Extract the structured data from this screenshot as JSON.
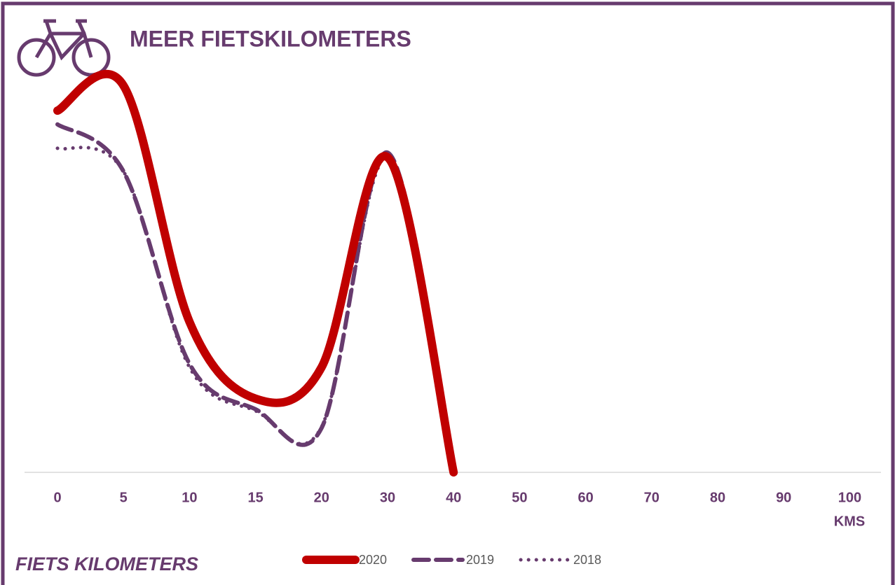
{
  "chart_data": {
    "type": "line",
    "title": "MEER FIETSKILOMETERS",
    "subtitle": "FIETS KILOMETERS",
    "xlabel": "KMS",
    "categories": [
      "0",
      "5",
      "10",
      "15",
      "20",
      "30",
      "40",
      "50",
      "60",
      "70",
      "80",
      "90",
      "100"
    ],
    "series": [
      {
        "name": "2020",
        "color": "#c00000",
        "style": "solid",
        "values": [
          92.3,
          98.7,
          38.4,
          18.8,
          26.8,
          80.4,
          0,
          null,
          null,
          null,
          null,
          null,
          null
        ]
      },
      {
        "name": "2019",
        "color": "#673b6e",
        "style": "dashed",
        "values": [
          88.8,
          76.8,
          27.7,
          16.1,
          11.3,
          81.6,
          0,
          null,
          null,
          null,
          null,
          null,
          null
        ]
      },
      {
        "name": "2018",
        "color": "#673b6e",
        "style": "dotted",
        "values": [
          82.7,
          76.8,
          26.8,
          15.7,
          11.6,
          80.4,
          0,
          null,
          null,
          null,
          null,
          null,
          null
        ]
      }
    ],
    "ylim": [
      0,
      100
    ]
  }
}
